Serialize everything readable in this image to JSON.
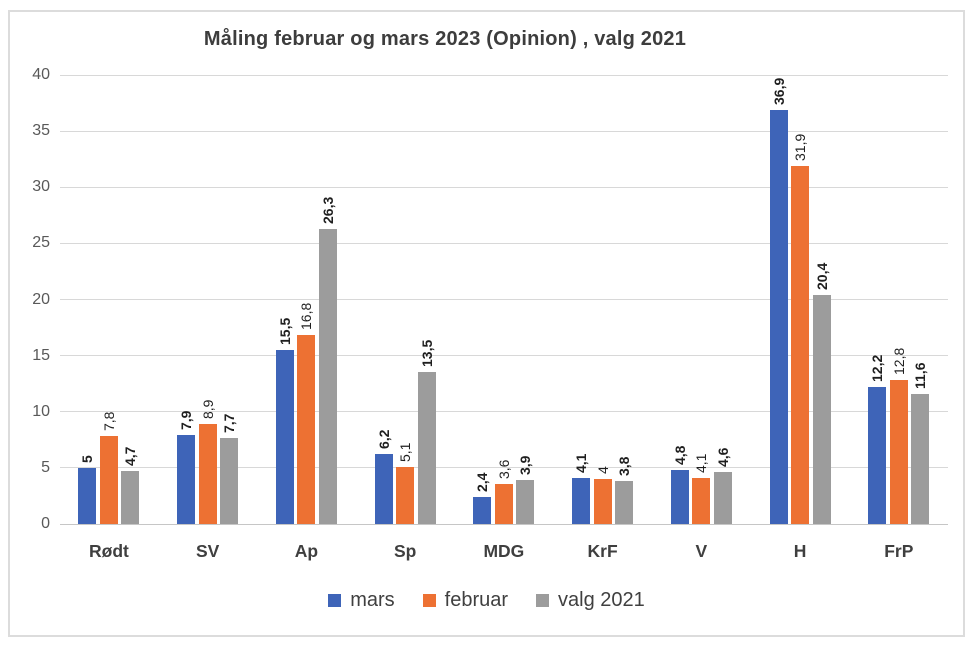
{
  "chart_data": {
    "type": "bar",
    "title": "Måling februar og mars 2023 (Opinion) , valg 2021",
    "xlabel": "",
    "ylabel": "",
    "categories": [
      "Rødt",
      "SV",
      "Ap",
      "Sp",
      "MDG",
      "KrF",
      "V",
      "H",
      "FrP"
    ],
    "series": [
      {
        "name": "mars",
        "color": "#3E64B8",
        "values": [
          5,
          7.9,
          15.5,
          6.2,
          2.4,
          4.1,
          4.8,
          36.9,
          12.2
        ],
        "labels": [
          "5",
          "7,9",
          "15,5",
          "6,2",
          "2,4",
          "4,1",
          "4,8",
          "36,9",
          "12,2"
        ]
      },
      {
        "name": "februar",
        "color": "#ED7133",
        "values": [
          7.8,
          8.9,
          16.8,
          5.1,
          3.6,
          4,
          4.1,
          31.9,
          12.8
        ],
        "labels": [
          "7,8",
          "8,9",
          "16,8",
          "5,1",
          "3,6",
          "4",
          "4,1",
          "31,9",
          "12,8"
        ]
      },
      {
        "name": "valg 2021",
        "color": "#9C9C9C",
        "values": [
          4.7,
          7.7,
          26.3,
          13.5,
          3.9,
          3.8,
          4.6,
          20.4,
          11.6
        ],
        "labels": [
          "4,7",
          "7,7",
          "26,3",
          "13,5",
          "3,9",
          "3,8",
          "4,6",
          "20,4",
          "11,6"
        ]
      }
    ],
    "ylim": [
      0,
      40
    ],
    "yticks": [
      0,
      5,
      10,
      15,
      20,
      25,
      30,
      35,
      40
    ],
    "grid": true,
    "legend_position": "bottom",
    "colors": {
      "grid": "#d8d8d8",
      "axis_line": "#c6c6c6",
      "axis_text": "#595959",
      "data_label_text": "#1f1f1f",
      "chart_border": "#dcdcdc"
    }
  }
}
